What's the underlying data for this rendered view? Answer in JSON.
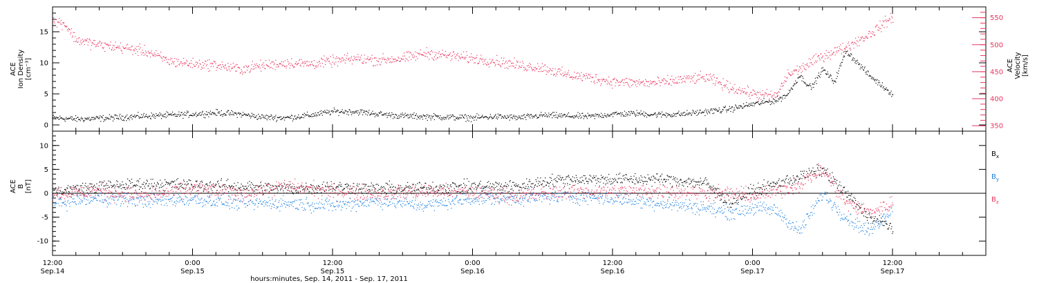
{
  "colors": {
    "black": "#000000",
    "pink": "#e8335d",
    "blue": "#1a7fe0"
  },
  "x_axis": {
    "label": "hours:minutes, Sep. 14, 2011 - Sep. 17, 2011",
    "range_hours": [
      0,
      80
    ],
    "major_ticks": [
      {
        "t": 0,
        "time": "12:00",
        "date": "Sep.14"
      },
      {
        "t": 12,
        "time": "0:00",
        "date": "Sep.15"
      },
      {
        "t": 24,
        "time": "12:00",
        "date": "Sep.15"
      },
      {
        "t": 36,
        "time": "0:00",
        "date": "Sep.16"
      },
      {
        "t": 48,
        "time": "12:00",
        "date": "Sep.16"
      },
      {
        "t": 60,
        "time": "0:00",
        "date": "Sep.17"
      },
      {
        "t": 72,
        "time": "12:00",
        "date": "Sep.17"
      }
    ],
    "minor_step_hours": 2
  },
  "chart_data": [
    {
      "type": "scatter",
      "panel": "top",
      "ylabel_left": [
        "ACE",
        "Ion Density",
        "[cm⁻³]"
      ],
      "ylabel_right": [
        "ACE",
        "Velocity",
        "[km/s]"
      ],
      "ylim_left": [
        -1,
        19
      ],
      "ylim_right": [
        340,
        570
      ],
      "yticks_left": [
        0,
        5,
        10,
        15
      ],
      "yticks_right": [
        350,
        400,
        450,
        500,
        550
      ],
      "series": [
        {
          "name": "",
          "axis": "left",
          "color": "#000000",
          "noise": 0.35,
          "points": [
            [
              0,
              1.2
            ],
            [
              2,
              1.0
            ],
            [
              4,
              1.1
            ],
            [
              6,
              1.3
            ],
            [
              8,
              1.5
            ],
            [
              10,
              1.6
            ],
            [
              12,
              1.8
            ],
            [
              14,
              2.0
            ],
            [
              16,
              1.8
            ],
            [
              18,
              1.3
            ],
            [
              20,
              1.2
            ],
            [
              22,
              1.6
            ],
            [
              24,
              2.2
            ],
            [
              26,
              2.2
            ],
            [
              28,
              1.8
            ],
            [
              30,
              1.5
            ],
            [
              32,
              1.4
            ],
            [
              34,
              1.3
            ],
            [
              36,
              1.2
            ],
            [
              38,
              1.4
            ],
            [
              40,
              1.2
            ],
            [
              42,
              1.6
            ],
            [
              44,
              1.5
            ],
            [
              46,
              1.4
            ],
            [
              48,
              1.8
            ],
            [
              50,
              1.9
            ],
            [
              52,
              1.7
            ],
            [
              54,
              1.8
            ],
            [
              56,
              2.2
            ],
            [
              58,
              2.6
            ],
            [
              60,
              3.4
            ],
            [
              62,
              4.0
            ],
            [
              63,
              5.0
            ],
            [
              64,
              8.0
            ],
            [
              65,
              6.0
            ],
            [
              66,
              9.0
            ],
            [
              67,
              7.0
            ],
            [
              68,
              12.0
            ],
            [
              69,
              10.0
            ],
            [
              70,
              8.0
            ],
            [
              71,
              6.5
            ],
            [
              72,
              5.0
            ]
          ]
        },
        {
          "name": "",
          "axis": "right",
          "color": "#e8335d",
          "noise": 7,
          "points": [
            [
              0,
              545
            ],
            [
              1,
              540
            ],
            [
              2,
              510
            ],
            [
              4,
              500
            ],
            [
              6,
              495
            ],
            [
              8,
              488
            ],
            [
              10,
              470
            ],
            [
              12,
              465
            ],
            [
              14,
              463
            ],
            [
              16,
              455
            ],
            [
              18,
              462
            ],
            [
              20,
              467
            ],
            [
              22,
              465
            ],
            [
              24,
              470
            ],
            [
              26,
              475
            ],
            [
              28,
              472
            ],
            [
              30,
              475
            ],
            [
              32,
              485
            ],
            [
              34,
              480
            ],
            [
              36,
              475
            ],
            [
              38,
              470
            ],
            [
              40,
              462
            ],
            [
              42,
              458
            ],
            [
              44,
              445
            ],
            [
              46,
              440
            ],
            [
              48,
              432
            ],
            [
              50,
              430
            ],
            [
              52,
              430
            ],
            [
              54,
              436
            ],
            [
              56,
              440
            ],
            [
              58,
              422
            ],
            [
              60,
              410
            ],
            [
              62,
              405
            ],
            [
              63,
              445
            ],
            [
              64,
              455
            ],
            [
              66,
              480
            ],
            [
              68,
              496
            ],
            [
              70,
              520
            ],
            [
              72,
              552
            ]
          ]
        }
      ]
    },
    {
      "type": "scatter",
      "panel": "bottom",
      "ylabel_left": [
        "ACE",
        "B",
        "[nT]"
      ],
      "ylim": [
        -13,
        13
      ],
      "yticks": [
        -10,
        -5,
        0,
        5,
        10
      ],
      "legend_position": "right",
      "series": [
        {
          "name": "B",
          "sub": "x",
          "color": "#000000",
          "noise": 0.9,
          "points": [
            [
              0,
              0.5
            ],
            [
              4,
              1.5
            ],
            [
              8,
              2.0
            ],
            [
              12,
              1.8
            ],
            [
              16,
              1.5
            ],
            [
              20,
              1.0
            ],
            [
              24,
              1.5
            ],
            [
              28,
              1.0
            ],
            [
              32,
              1.2
            ],
            [
              36,
              1.5
            ],
            [
              40,
              1.5
            ],
            [
              42,
              2.5
            ],
            [
              44,
              3.0
            ],
            [
              48,
              3.0
            ],
            [
              52,
              3.0
            ],
            [
              56,
              2.2
            ],
            [
              58,
              -2.0
            ],
            [
              60,
              0.5
            ],
            [
              62,
              2.0
            ],
            [
              64,
              3.5
            ],
            [
              66,
              5.0
            ],
            [
              68,
              0
            ],
            [
              70,
              -5
            ],
            [
              72,
              -7
            ]
          ]
        },
        {
          "name": "B",
          "sub": "y",
          "color": "#1a7fe0",
          "noise": 1.0,
          "points": [
            [
              0,
              -2.0
            ],
            [
              4,
              -1.0
            ],
            [
              8,
              -1.5
            ],
            [
              12,
              -1.2
            ],
            [
              16,
              -2.0
            ],
            [
              20,
              -2.0
            ],
            [
              24,
              -2.5
            ],
            [
              28,
              -1.5
            ],
            [
              32,
              -2.5
            ],
            [
              36,
              -1.0
            ],
            [
              40,
              -1.0
            ],
            [
              44,
              -0.5
            ],
            [
              48,
              -1.0
            ],
            [
              52,
              -2.0
            ],
            [
              56,
              -3.0
            ],
            [
              58,
              -4.0
            ],
            [
              60,
              -3.0
            ],
            [
              62,
              -3.5
            ],
            [
              64,
              -8.0
            ],
            [
              66,
              0
            ],
            [
              68,
              -5
            ],
            [
              70,
              -8
            ],
            [
              72,
              -3
            ]
          ]
        },
        {
          "name": "B",
          "sub": "z",
          "color": "#e8335d",
          "noise": 1.1,
          "points": [
            [
              0,
              0
            ],
            [
              4,
              0.5
            ],
            [
              8,
              -0.5
            ],
            [
              12,
              1.0
            ],
            [
              16,
              0
            ],
            [
              20,
              1.5
            ],
            [
              24,
              0.5
            ],
            [
              28,
              0
            ],
            [
              32,
              0.5
            ],
            [
              36,
              0.3
            ],
            [
              40,
              -0.5
            ],
            [
              44,
              0.5
            ],
            [
              48,
              0.5
            ],
            [
              52,
              0.5
            ],
            [
              56,
              0.2
            ],
            [
              58,
              0
            ],
            [
              60,
              -0.5
            ],
            [
              62,
              0.5
            ],
            [
              64,
              2.0
            ],
            [
              66,
              5.0
            ],
            [
              68,
              -2.0
            ],
            [
              70,
              -4.0
            ],
            [
              72,
              -2.0
            ]
          ]
        }
      ]
    }
  ]
}
